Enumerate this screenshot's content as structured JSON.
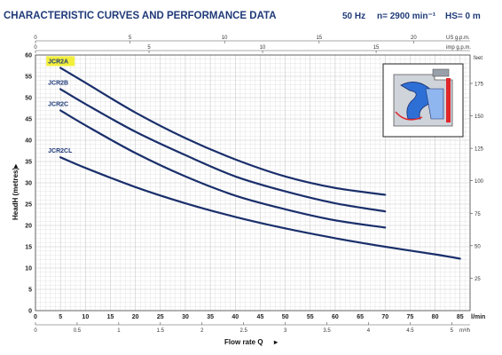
{
  "header": {
    "title": "CHARACTERISTIC CURVES AND PERFORMANCE DATA",
    "frequency": "50 Hz",
    "speed": "n= 2900 min⁻¹",
    "suction": "HS= 0 m"
  },
  "colors": {
    "curve": "#1a2f6b",
    "title": "#1f3a78",
    "grid": "#c8c8c8",
    "highlight": "#f3ef3a"
  },
  "chart_data": {
    "type": "line",
    "xlabel": "Flow rate Q",
    "ylabel": "HeadH (metres)",
    "x_unit": "l/min",
    "xlim": [
      0,
      87
    ],
    "ylim": [
      0,
      60
    ],
    "x_ticks": [
      0,
      5,
      10,
      15,
      20,
      25,
      30,
      35,
      40,
      45,
      50,
      55,
      60,
      65,
      70,
      75,
      80,
      85
    ],
    "y_ticks": [
      0,
      5,
      10,
      15,
      20,
      25,
      30,
      35,
      40,
      45,
      50,
      55,
      60
    ],
    "top_axis_us_label": "US g.p.m.",
    "top_axis_us_ticks": [
      0,
      5,
      10,
      15,
      20
    ],
    "top_axis_imp_label": "imp g.p.m.",
    "top_axis_imp_ticks": [
      0,
      5,
      10,
      15
    ],
    "bottom_axis_m3h_label": "m³/h",
    "bottom_axis_m3h_ticks": [
      "0",
      "0.5",
      "1",
      "1.5",
      "2",
      "2.5",
      "3",
      "3.5",
      "4",
      "4.5",
      "5"
    ],
    "right_axis_label": "feet",
    "right_axis_ticks": [
      25,
      50,
      75,
      100,
      125,
      150,
      175
    ],
    "series": [
      {
        "name": "JCR2A",
        "highlighted": true,
        "x": [
          5,
          10,
          20,
          30,
          40,
          50,
          60,
          70
        ],
        "y": [
          57,
          53.5,
          46.5,
          40.5,
          35.5,
          31.5,
          28.8,
          27.2
        ]
      },
      {
        "name": "JCR2B",
        "x": [
          5,
          10,
          20,
          30,
          40,
          50,
          60,
          70
        ],
        "y": [
          52,
          48.5,
          42,
          36.5,
          31.5,
          28,
          25.2,
          23.3
        ]
      },
      {
        "name": "JCR2C",
        "x": [
          5,
          10,
          20,
          30,
          40,
          50,
          60,
          70
        ],
        "y": [
          47,
          43.5,
          37,
          31.5,
          27,
          23.8,
          21.2,
          19.5
        ]
      },
      {
        "name": "JCR2CL",
        "x": [
          5,
          10,
          20,
          30,
          40,
          50,
          60,
          70,
          80,
          85
        ],
        "y": [
          36,
          33.5,
          29,
          25.2,
          22,
          19.3,
          17,
          15,
          13.2,
          12.2
        ]
      }
    ]
  }
}
